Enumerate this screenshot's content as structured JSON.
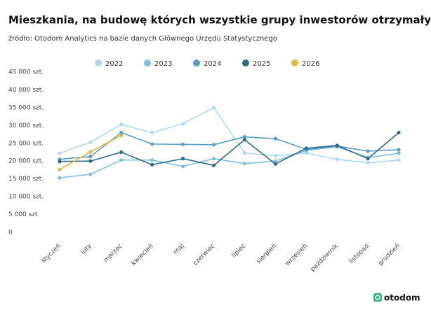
{
  "chart_data": {
    "type": "line",
    "title": "Mieszkania, na budowę których wszystkie grupy inwestorów otrzymały pozwolenia",
    "subtitle": "źródło: Otodom Analytics na bazie danych Głównego Urzędu Statystycznego",
    "logo": "otodom",
    "categories": [
      "styczeń",
      "luty",
      "marzec",
      "kwiecień",
      "maj",
      "czerwiec",
      "lipiec",
      "sierpień",
      "wrzesień",
      "październik",
      "listopad",
      "grudzień"
    ],
    "series": [
      {
        "name": "2022",
        "color": "#a9daf2",
        "values": [
          22200,
          25300,
          30300,
          28000,
          30500,
          35000,
          22300,
          21500,
          22300,
          20500,
          19500,
          20300
        ]
      },
      {
        "name": "2023",
        "color": "#7cbfe0",
        "values": [
          15300,
          16300,
          20300,
          20300,
          18500,
          20700,
          19300,
          20000,
          23000,
          24000,
          21000,
          22200
        ]
      },
      {
        "name": "2024",
        "color": "#5a9ec4",
        "values": [
          20500,
          21300,
          28000,
          24800,
          24700,
          24600,
          26800,
          26300,
          23300,
          24200,
          22800,
          23200
        ]
      },
      {
        "name": "2025",
        "color": "#2d6a8c",
        "values": [
          19900,
          20000,
          22500,
          19000,
          20700,
          18800,
          26000,
          19200,
          23600,
          24400,
          20700,
          28000
        ]
      },
      {
        "name": "2026",
        "color": "#e6b83b",
        "values": [
          17600,
          22600,
          27200,
          null,
          null,
          null,
          null,
          null,
          null,
          null,
          null,
          null
        ]
      }
    ],
    "ylim": [
      0,
      45000
    ],
    "yticks": [
      0,
      {
        "value": 5000,
        "label": "5 000 szt."
      },
      {
        "value": 10000,
        "label": "10 000 szt."
      },
      {
        "value": 15000,
        "label": "15 000 szt."
      },
      {
        "value": 20000,
        "label": "20 000 szt."
      },
      {
        "value": 25000,
        "label": "25 000 szt."
      },
      {
        "value": 30000,
        "label": "30 000 szt."
      },
      {
        "value": 35000,
        "label": "35 000 szt."
      },
      {
        "value": 40000,
        "label": "40 000 szt."
      },
      {
        "value": 45000,
        "label": "45 000 szt."
      }
    ],
    "legend": "top"
  }
}
